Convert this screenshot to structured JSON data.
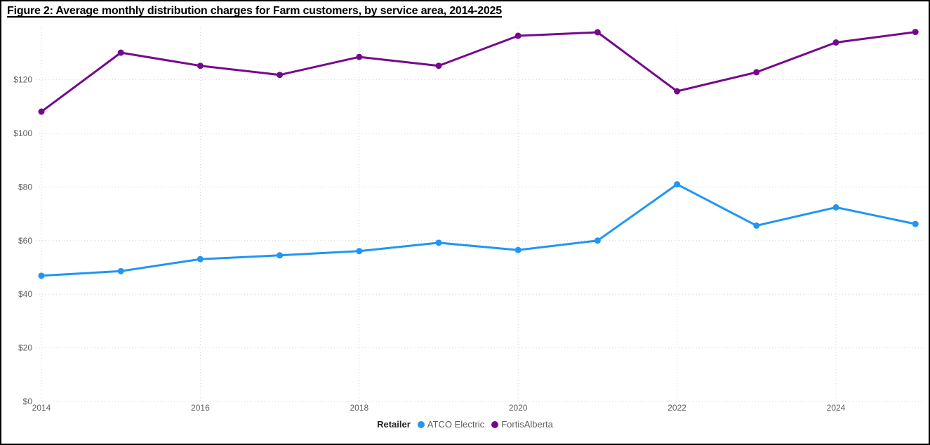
{
  "page": {
    "background": "#ffffff",
    "border_color": "#000000"
  },
  "colors": {
    "grid": "#D6D6D6",
    "axis_text": "#605E5C",
    "legend_title_text": "#252423",
    "title_text": "#000000"
  },
  "chart_data": {
    "type": "line",
    "title": "Figure 2: Average monthly distribution charges for Farm customers, by service area, 2014-2025",
    "x": [
      2014,
      2015,
      2016,
      2017,
      2018,
      2019,
      2020,
      2021,
      2022,
      2023,
      2024,
      2025
    ],
    "x_ticks": [
      2014,
      2016,
      2018,
      2020,
      2022,
      2024
    ],
    "x_tick_labels": [
      "2014",
      "2016",
      "2018",
      "2020",
      "2022",
      "2024"
    ],
    "y_ticks": [
      0,
      20,
      40,
      60,
      80,
      100,
      120
    ],
    "y_tick_labels": [
      "$0",
      "$20",
      "$40",
      "$60",
      "$80",
      "$100",
      "$120"
    ],
    "ylim": [
      0,
      140
    ],
    "xlabel": "",
    "ylabel": "",
    "grid": "dotted",
    "legend": {
      "title": "Retailer",
      "position": "bottom-center"
    },
    "series": [
      {
        "name": "ATCO Electric",
        "color": "#2196F3",
        "values": [
          46.9,
          48.6,
          53.1,
          54.5,
          56.1,
          59.2,
          56.5,
          60.0,
          81.0,
          65.6,
          72.4,
          66.2
        ]
      },
      {
        "name": "FortisAlberta",
        "color": "#75098E",
        "values": [
          108.1,
          130.1,
          125.2,
          121.8,
          128.5,
          125.2,
          136.4,
          137.7,
          115.7,
          122.8,
          133.9,
          137.8
        ]
      }
    ]
  }
}
